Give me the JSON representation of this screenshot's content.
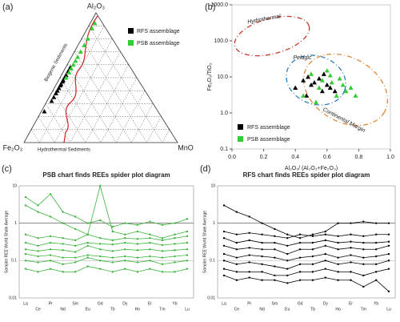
{
  "chart_data": [
    {
      "type": "ternary",
      "panel_label": "(a)",
      "vertex_labels": [
        "Al₂O₃",
        "Fe₂O₃",
        "MnO"
      ],
      "annotations": [
        "Biogenic Sediments",
        "Hydrothermal Sediments"
      ],
      "series": [
        {
          "name": "RFS assemblage",
          "color": "#000000",
          "a": [
            24,
            32,
            35,
            38,
            40,
            42,
            44,
            45,
            47,
            48,
            50,
            52,
            55,
            58
          ],
          "b": [
            74,
            65,
            62,
            59,
            57,
            55,
            53,
            52,
            50,
            49,
            47,
            45,
            42,
            39
          ],
          "c": [
            2,
            3,
            3,
            3,
            3,
            3,
            3,
            3,
            3,
            3,
            3,
            3,
            3,
            3
          ]
        },
        {
          "name": "PSB assemblage",
          "color": "#33cc33",
          "a": [
            50,
            54,
            57,
            60,
            63,
            66,
            70,
            75,
            80,
            88,
            92
          ],
          "b": [
            46,
            42,
            39,
            36,
            33,
            30,
            26,
            21,
            16,
            9,
            5
          ],
          "c": [
            4,
            4,
            4,
            4,
            4,
            4,
            4,
            4,
            4,
            3,
            3
          ]
        }
      ]
    },
    {
      "type": "scatter",
      "panel_label": "(b)",
      "x_label": "Al₂O₃/ (Al₂O₃+Fe₂O₃)",
      "y_label": "Fe₂O₃/TiO₂",
      "annotations": [
        "Hydrothermal",
        "Pelagic",
        "Continental Margin"
      ],
      "xlim": [
        0,
        1
      ],
      "xticks": [
        {
          "value": 0,
          "label": "0.0"
        },
        0.2,
        0.4,
        0.6,
        0.8,
        {
          "value": 1,
          "label": "1.0"
        }
      ],
      "ylim": [
        0.1,
        1000
      ],
      "y_scale": "log",
      "yticks": [
        0.1,
        {
          "value": 1,
          "label": "1.0"
        },
        {
          "value": 10,
          "label": "10.0"
        },
        {
          "value": 100,
          "label": "100.0"
        },
        {
          "value": 1000,
          "label": "1000.0"
        }
      ],
      "legend": "lower left",
      "series": [
        {
          "name": "RFS assemblage",
          "color": "#000000",
          "x": [
            0.4,
            0.45,
            0.48,
            0.5,
            0.52,
            0.55,
            0.57,
            0.6,
            0.62,
            0.65,
            0.58,
            0.47
          ],
          "values": [
            5,
            8,
            10,
            6,
            7,
            9,
            4,
            6,
            5,
            4,
            12,
            3
          ]
        },
        {
          "name": "PSB assemblage",
          "color": "#33cc33",
          "x": [
            0.45,
            0.5,
            0.55,
            0.6,
            0.63,
            0.66,
            0.68,
            0.7,
            0.72,
            0.75,
            0.78,
            0.62,
            0.57,
            0.53
          ],
          "values": [
            3,
            12,
            5,
            15,
            7,
            3,
            9,
            6,
            4,
            5,
            3,
            11,
            8,
            2
          ]
        }
      ]
    },
    {
      "type": "line",
      "panel_label": "(c)",
      "title": "PSB chart finds REEs spider plot diagram",
      "y_label": "Sample/ REE World Shale Average",
      "color": "#3cb33c",
      "y_scale": "log",
      "grid": true,
      "categories": [
        "La",
        "Ce",
        "Pr",
        "Nd",
        "Sm",
        "Eu",
        "Gd",
        "Tb",
        "Dy",
        "Ho",
        "Er",
        "Tm",
        "Yb",
        "Lu"
      ],
      "ylim": [
        0.01,
        10
      ],
      "yticks": [
        0.01,
        0.1,
        1,
        10
      ],
      "series": [
        {
          "values": [
            5,
            3,
            6,
            2,
            1.5,
            1,
            1.2,
            0.8,
            1,
            0.9,
            1.1,
            0.9,
            1,
            1.3
          ]
        },
        {
          "values": [
            3,
            2,
            1.5,
            1,
            0.7,
            0.5,
            10,
            0.6,
            0.5,
            0.6,
            0.5,
            0.4,
            0.5,
            0.6
          ]
        },
        {
          "values": [
            0.5,
            0.4,
            0.45,
            0.4,
            0.35,
            0.5,
            0.4,
            0.35,
            0.4,
            0.38,
            0.4,
            0.35,
            0.4,
            0.45
          ]
        },
        {
          "values": [
            0.3,
            0.25,
            0.3,
            0.28,
            0.25,
            0.3,
            0.28,
            0.27,
            0.3,
            0.28,
            0.3,
            0.26,
            0.28,
            0.3
          ]
        },
        {
          "values": [
            0.2,
            0.18,
            0.2,
            0.19,
            0.17,
            0.25,
            0.2,
            0.18,
            0.2,
            0.19,
            0.2,
            0.18,
            0.19,
            0.2
          ]
        },
        {
          "values": [
            0.15,
            0.13,
            0.14,
            0.12,
            0.12,
            0.14,
            0.13,
            0.12,
            0.13,
            0.12,
            0.13,
            0.12,
            0.13,
            0.14
          ]
        },
        {
          "values": [
            0.1,
            0.09,
            0.1,
            0.08,
            0.09,
            0.12,
            0.1,
            0.09,
            0.1,
            0.09,
            0.1,
            0.08,
            0.09,
            0.1
          ]
        },
        {
          "values": [
            0.06,
            0.05,
            0.06,
            0.05,
            0.05,
            0.07,
            0.06,
            0.05,
            0.06,
            0.05,
            0.06,
            0.05,
            0.05,
            0.06
          ]
        }
      ]
    },
    {
      "type": "line",
      "panel_label": "(d)",
      "title": "RFS chart finds REEs spider plot diagram",
      "y_label": "Sample/ REE World Shale Average",
      "color": "#000000",
      "y_scale": "log",
      "grid": true,
      "categories": [
        "La",
        "Ce",
        "Pr",
        "Nd",
        "Sm",
        "Eu",
        "Gd",
        "Tb",
        "Dy",
        "Ho",
        "Er",
        "Tm",
        "Yb",
        "Lu"
      ],
      "ylim": [
        0.01,
        10
      ],
      "yticks": [
        0.01,
        0.1,
        1,
        10
      ],
      "series": [
        {
          "values": [
            3,
            2,
            1.5,
            1,
            0.7,
            0.5,
            0.4,
            0.5,
            0.6,
            1,
            1,
            1.1,
            1,
            1
          ]
        },
        {
          "values": [
            0.6,
            0.5,
            0.55,
            0.5,
            0.45,
            0.4,
            0.5,
            0.45,
            0.5,
            0.45,
            0.5,
            0.45,
            0.5,
            0.5
          ]
        },
        {
          "values": [
            0.4,
            0.3,
            0.35,
            0.3,
            0.3,
            0.25,
            0.3,
            0.3,
            0.35,
            0.3,
            0.32,
            0.3,
            0.3,
            0.32
          ]
        },
        {
          "values": [
            0.25,
            0.2,
            0.22,
            0.2,
            0.2,
            0.15,
            0.2,
            0.2,
            0.25,
            0.2,
            0.22,
            0.2,
            0.2,
            0.25
          ]
        },
        {
          "values": [
            0.15,
            0.12,
            0.14,
            0.13,
            0.12,
            0.1,
            0.12,
            0.13,
            0.15,
            0.12,
            0.14,
            0.12,
            0.13,
            0.15
          ]
        },
        {
          "values": [
            0.1,
            0.08,
            0.09,
            0.08,
            0.07,
            0.06,
            0.08,
            0.08,
            0.1,
            0.08,
            0.09,
            0.08,
            0.08,
            0.1
          ]
        },
        {
          "values": [
            0.06,
            0.05,
            0.05,
            0.05,
            0.04,
            0.04,
            0.05,
            0.05,
            0.06,
            0.05,
            0.05,
            0.04,
            0.05,
            0.06
          ]
        },
        {
          "values": [
            0.04,
            0.03,
            0.035,
            0.03,
            0.03,
            0.025,
            0.03,
            0.03,
            0.035,
            0.03,
            0.03,
            0.02,
            0.03,
            0.015
          ]
        }
      ]
    }
  ]
}
